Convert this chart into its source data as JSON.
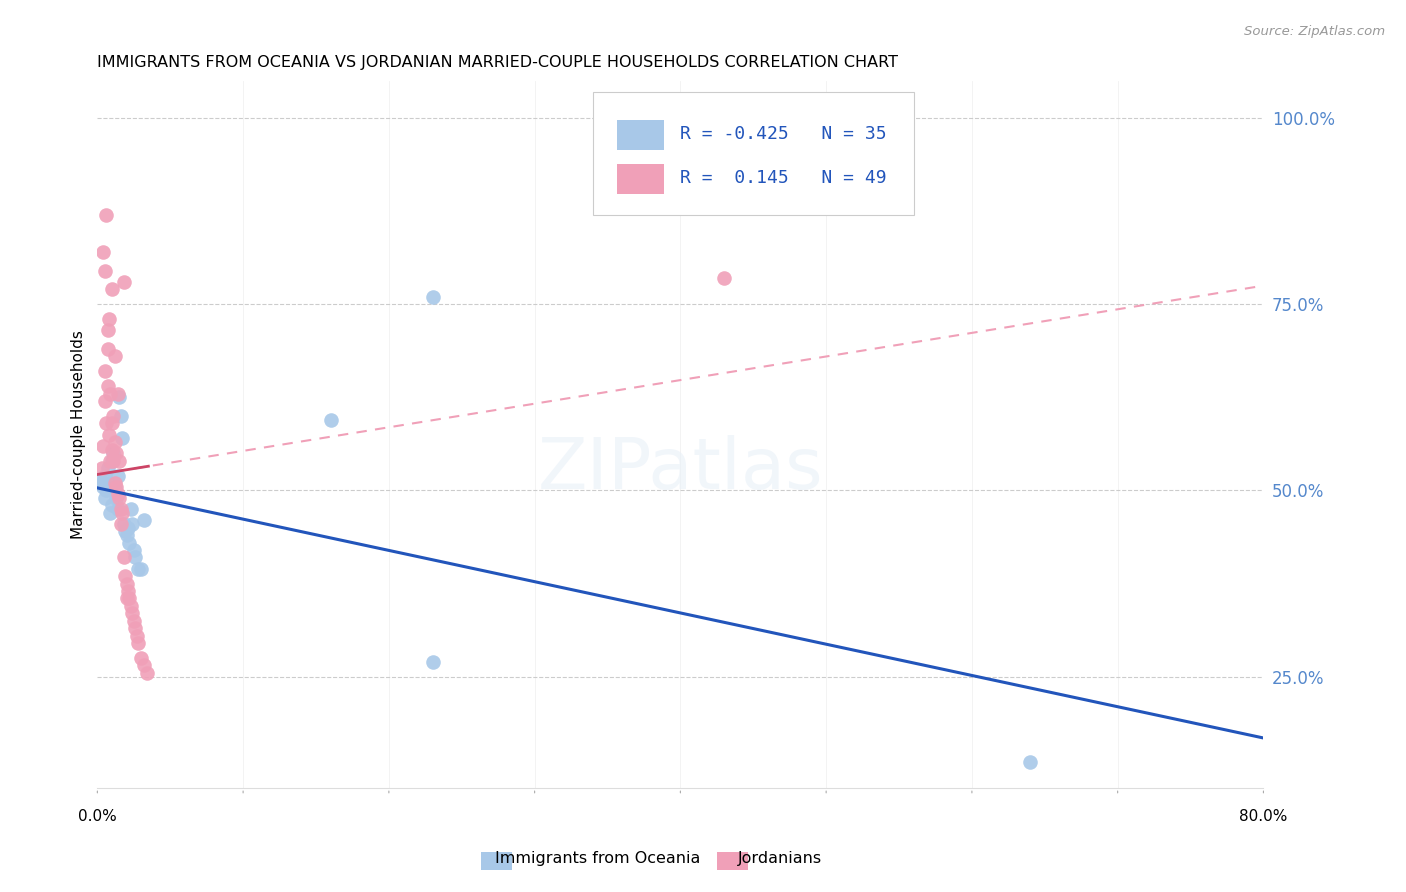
{
  "title": "IMMIGRANTS FROM OCEANIA VS JORDANIAN MARRIED-COUPLE HOUSEHOLDS CORRELATION CHART",
  "source": "Source: ZipAtlas.com",
  "ylabel": "Married-couple Households",
  "legend1_label": "Immigrants from Oceania",
  "legend2_label": "Jordanians",
  "r1": -0.425,
  "n1": 35,
  "r2": 0.145,
  "n2": 49,
  "blue_color": "#a8c8e8",
  "pink_color": "#f0a0b8",
  "blue_line_color": "#2255bb",
  "pink_line_color": "#cc4466",
  "pink_dash_color": "#f0a0b8",
  "xmin": 0.0,
  "xmax": 0.8,
  "ymin": 0.1,
  "ymax": 1.05,
  "blue_points_x": [
    0.002,
    0.003,
    0.004,
    0.005,
    0.005,
    0.006,
    0.007,
    0.008,
    0.009,
    0.01,
    0.01,
    0.011,
    0.012,
    0.013,
    0.014,
    0.014,
    0.015,
    0.016,
    0.017,
    0.018,
    0.019,
    0.02,
    0.021,
    0.022,
    0.023,
    0.024,
    0.025,
    0.026,
    0.028,
    0.03,
    0.032,
    0.16,
    0.23,
    0.64,
    0.23
  ],
  "blue_points_y": [
    0.515,
    0.51,
    0.505,
    0.52,
    0.49,
    0.5,
    0.53,
    0.51,
    0.47,
    0.54,
    0.48,
    0.55,
    0.505,
    0.49,
    0.52,
    0.475,
    0.625,
    0.6,
    0.57,
    0.455,
    0.445,
    0.44,
    0.45,
    0.43,
    0.475,
    0.455,
    0.42,
    0.41,
    0.395,
    0.395,
    0.46,
    0.595,
    0.27,
    0.135,
    0.76
  ],
  "pink_points_x": [
    0.003,
    0.004,
    0.005,
    0.005,
    0.006,
    0.007,
    0.007,
    0.008,
    0.009,
    0.009,
    0.01,
    0.01,
    0.011,
    0.011,
    0.012,
    0.012,
    0.013,
    0.013,
    0.014,
    0.015,
    0.015,
    0.016,
    0.017,
    0.018,
    0.019,
    0.02,
    0.021,
    0.022,
    0.023,
    0.024,
    0.025,
    0.026,
    0.027,
    0.028,
    0.03,
    0.032,
    0.034,
    0.004,
    0.006,
    0.008,
    0.01,
    0.012,
    0.014,
    0.016,
    0.018,
    0.005,
    0.007,
    0.43,
    0.02
  ],
  "pink_points_y": [
    0.53,
    0.56,
    0.62,
    0.66,
    0.59,
    0.64,
    0.69,
    0.575,
    0.63,
    0.54,
    0.59,
    0.555,
    0.54,
    0.6,
    0.51,
    0.565,
    0.505,
    0.55,
    0.495,
    0.49,
    0.54,
    0.475,
    0.47,
    0.41,
    0.385,
    0.375,
    0.365,
    0.355,
    0.345,
    0.335,
    0.325,
    0.315,
    0.305,
    0.295,
    0.275,
    0.265,
    0.255,
    0.82,
    0.87,
    0.73,
    0.77,
    0.68,
    0.63,
    0.455,
    0.78,
    0.795,
    0.715,
    0.785,
    0.355
  ]
}
